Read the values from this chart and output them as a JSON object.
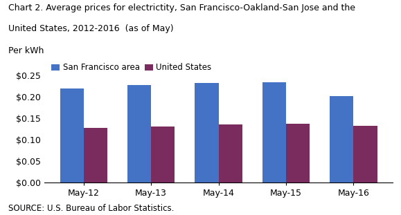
{
  "title_line1": "Chart 2. Average prices for electrictity, San Francisco-Oakland-San Jose and the",
  "title_line2": "United States, 2012-2016  (as of May)",
  "per_kwh": "Per kWh",
  "source": "SOURCE: U.S. Bureau of Labor Statistics.",
  "categories": [
    "May-12",
    "May-13",
    "May-14",
    "May-15",
    "May-16"
  ],
  "sf_values": [
    0.219,
    0.228,
    0.232,
    0.234,
    0.201
  ],
  "us_values": [
    0.128,
    0.13,
    0.135,
    0.137,
    0.132
  ],
  "sf_color": "#4472C4",
  "us_color": "#7B2C5E",
  "sf_label": "San Francisco area",
  "us_label": "United States",
  "ylim": [
    0.0,
    0.25
  ],
  "yticks": [
    0.0,
    0.05,
    0.1,
    0.15,
    0.2,
    0.25
  ],
  "bar_width": 0.35,
  "background_color": "#FFFFFF",
  "title_fontsize": 9.0,
  "axis_fontsize": 9,
  "legend_fontsize": 8.5,
  "source_fontsize": 8.5
}
